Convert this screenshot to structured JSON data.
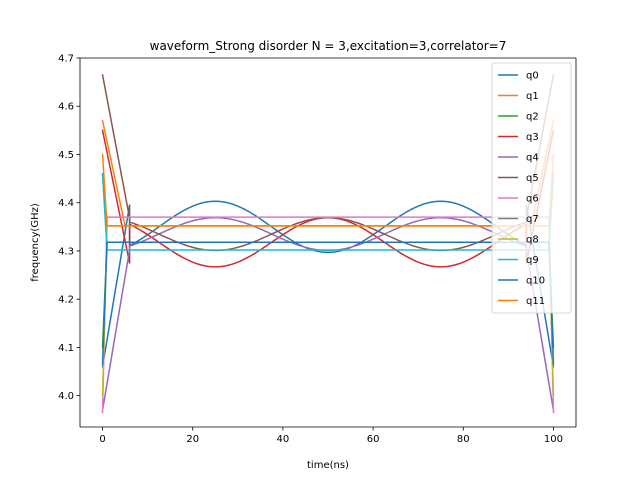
{
  "chart_data": {
    "type": "line",
    "title": "waveform_Strong disorder  N =  3,excitation=3,correlator=7",
    "xlabel": "time(ns)",
    "ylabel": "frequency(GHz)",
    "xlim": [
      -5,
      105
    ],
    "ylim": [
      3.935,
      4.7
    ],
    "xticks": [
      0,
      20,
      40,
      60,
      80,
      100
    ],
    "xtick_labels": [
      "0",
      "20",
      "40",
      "60",
      "80",
      "100"
    ],
    "yticks": [
      4.0,
      4.1,
      4.2,
      4.3,
      4.4,
      4.5,
      4.6,
      4.7
    ],
    "ytick_labels": [
      "4.0",
      "4.1",
      "4.2",
      "4.3",
      "4.4",
      "4.5",
      "4.6",
      "4.7"
    ],
    "grid": false,
    "legend_position": "upper-right",
    "series": [
      {
        "name": "q0",
        "color": "#1f77b4",
        "shape": "cos",
        "start": 4.06,
        "ramp_end": 6,
        "ramp_value": 4.395,
        "center": 4.35,
        "amplitude": -0.053,
        "phase_offset": 0.06
      },
      {
        "name": "q1",
        "color": "#ff7f0e",
        "shape": "flat",
        "start": 4.57,
        "ramp_end": 5,
        "value": 4.352
      },
      {
        "name": "q2",
        "color": "#2ca02c",
        "shape": "flat",
        "start": 4.1,
        "ramp_end": 1,
        "value": 4.318
      },
      {
        "name": "q3",
        "color": "#d62728",
        "shape": "cos",
        "start": 4.55,
        "ramp_end": 6,
        "ramp_value": 4.275,
        "center": 4.318,
        "amplitude": 0.051,
        "phase_offset": 0.06
      },
      {
        "name": "q4",
        "color": "#9467bd",
        "shape": "cos",
        "start": 3.97,
        "ramp_end": 6,
        "ramp_value": 4.302,
        "center": 4.335,
        "amplitude": -0.034,
        "phase_offset": 0.0
      },
      {
        "name": "q5",
        "color": "#8c564b",
        "shape": "cos",
        "start": 4.665,
        "ramp_end": 6,
        "ramp_value": 4.368,
        "center": 4.335,
        "amplitude": 0.034,
        "phase_offset": 0.0
      },
      {
        "name": "q6",
        "color": "#e377c2",
        "shape": "flat",
        "start": 3.965,
        "ramp_end": 1,
        "value": 4.37
      },
      {
        "name": "q7",
        "color": "#7f7f7f",
        "shape": "flat",
        "start": 4.46,
        "ramp_end": 1,
        "value": 4.318
      },
      {
        "name": "q8",
        "color": "#bcbd22",
        "shape": "flat",
        "start": 4.0,
        "ramp_end": 1,
        "value": 4.352
      },
      {
        "name": "q9",
        "color": "#17becf",
        "shape": "flat",
        "start": 4.46,
        "ramp_end": 1,
        "value": 4.302
      },
      {
        "name": "q10",
        "color": "#1f77b4",
        "shape": "flat",
        "start": 4.065,
        "ramp_end": 1,
        "value": 4.318
      },
      {
        "name": "q11",
        "color": "#ff7f0e",
        "shape": "flat",
        "start": 4.5,
        "ramp_end": 1,
        "value": 4.352
      }
    ]
  }
}
